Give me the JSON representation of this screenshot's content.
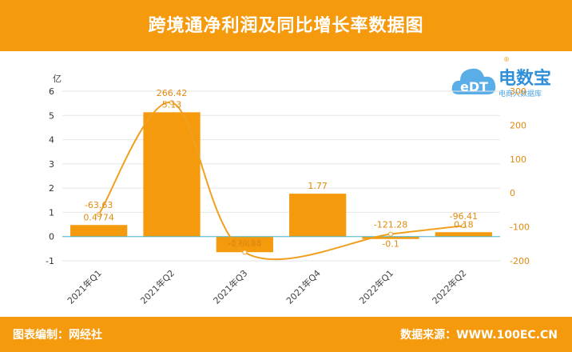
{
  "header": {
    "title": "跨境通净利润及同比增长率数据图"
  },
  "footer": {
    "left": "图表编制：网经社",
    "right": "数据来源：WWW.100EC.CN"
  },
  "logo": {
    "brand": "电数宝",
    "sub": "电商大数据库",
    "mark": "®"
  },
  "chart_data": {
    "type": "bar",
    "categories": [
      "2021年Q1",
      "2021年Q2",
      "2021年Q3",
      "2021年Q4",
      "2022年Q1",
      "2022年Q2"
    ],
    "y_unit": "亿",
    "ylim": [
      -1,
      6
    ],
    "yticks": [
      -1,
      0,
      1,
      2,
      3,
      4,
      5,
      6
    ],
    "y2lim": [
      -200,
      300
    ],
    "y2ticks": [
      -200,
      -100,
      0,
      100,
      200,
      300
    ],
    "y2ticks_label": [
      "-200",
      "-100",
      "0",
      "100",
      "200",
      "300"
    ],
    "series": [
      {
        "name": "",
        "type": "bar",
        "axis": "left",
        "color": "#f59a0c",
        "values": [
          0.4774,
          5.13,
          -0.6444,
          1.77,
          -0.1,
          0.18
        ],
        "labels": [
          "0.4774",
          "5.13",
          "-0.6444",
          "1.77",
          "-0.1",
          "0.18"
        ]
      },
      {
        "name": "",
        "type": "line",
        "axis": "right",
        "color": "#f0a020",
        "values": [
          -63.63,
          266.42,
          -174.98,
          null,
          -121.28,
          -96.41
        ],
        "labels": [
          "-63.63",
          "266.42",
          "-174.98",
          "",
          "-121.28",
          "-96.41"
        ]
      }
    ],
    "grid": true
  }
}
